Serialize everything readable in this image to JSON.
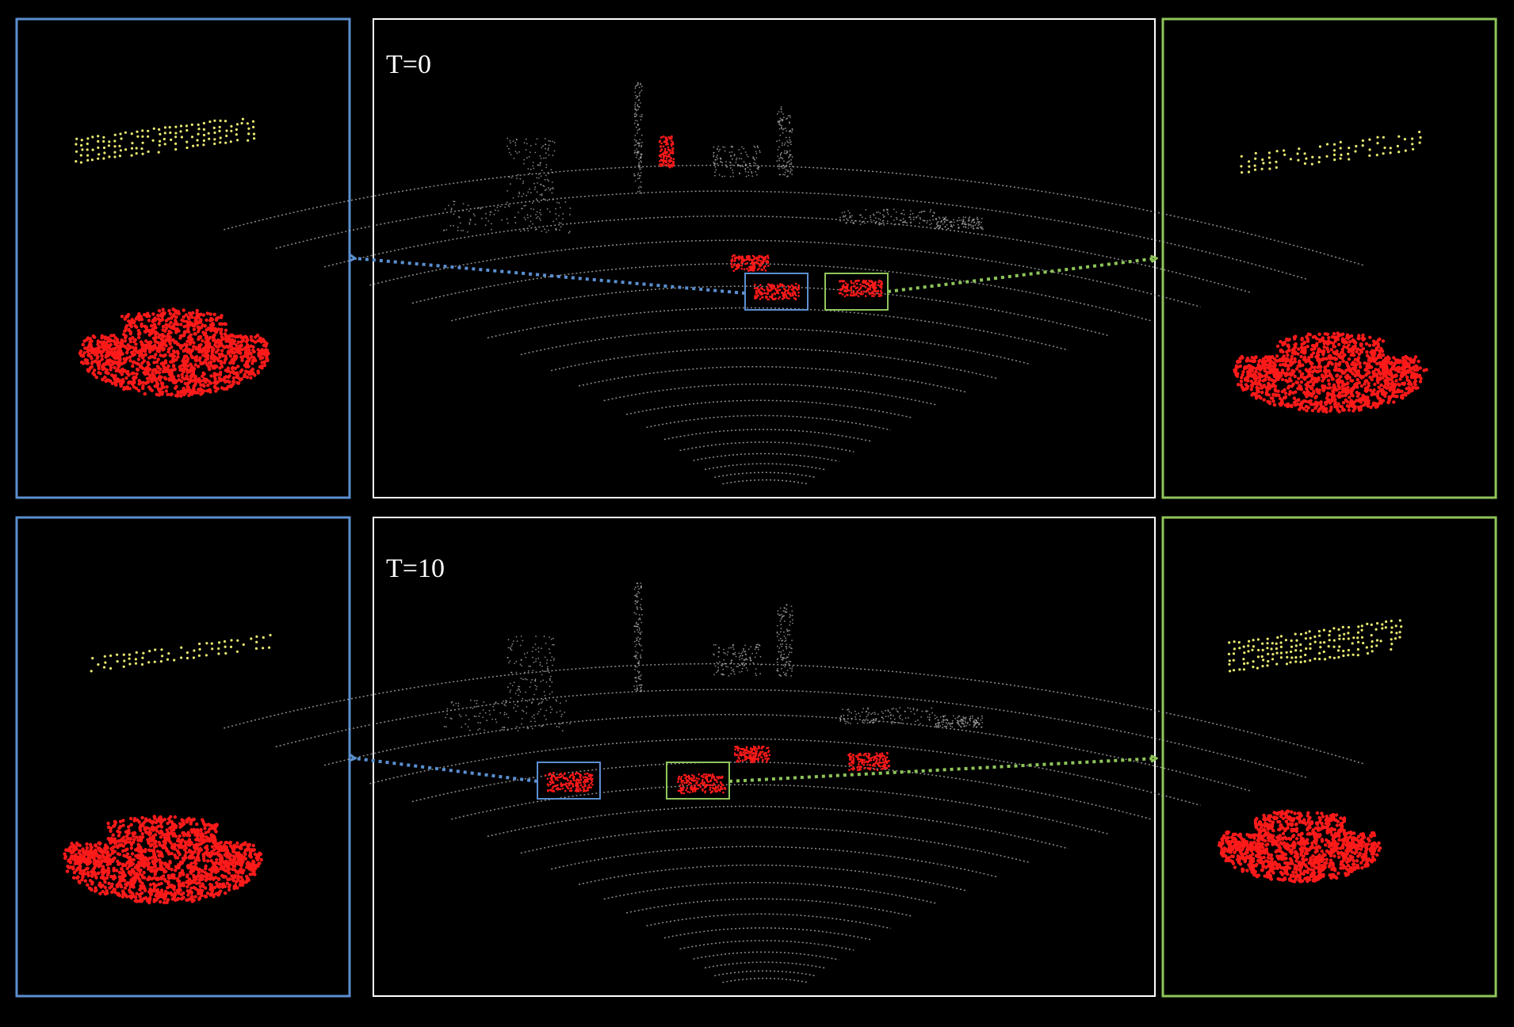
{
  "rows": [
    {
      "time_label": "T=0"
    },
    {
      "time_label": "T=10"
    }
  ],
  "colors": {
    "background": "#000000",
    "scene_frame": "#ffffff",
    "left_frame": "#5b8fd0",
    "right_frame": "#8fc55a",
    "partial_points": "#e8e870",
    "complete_points": "#ff1a1a",
    "lidar_points": "#bdbdbd"
  }
}
